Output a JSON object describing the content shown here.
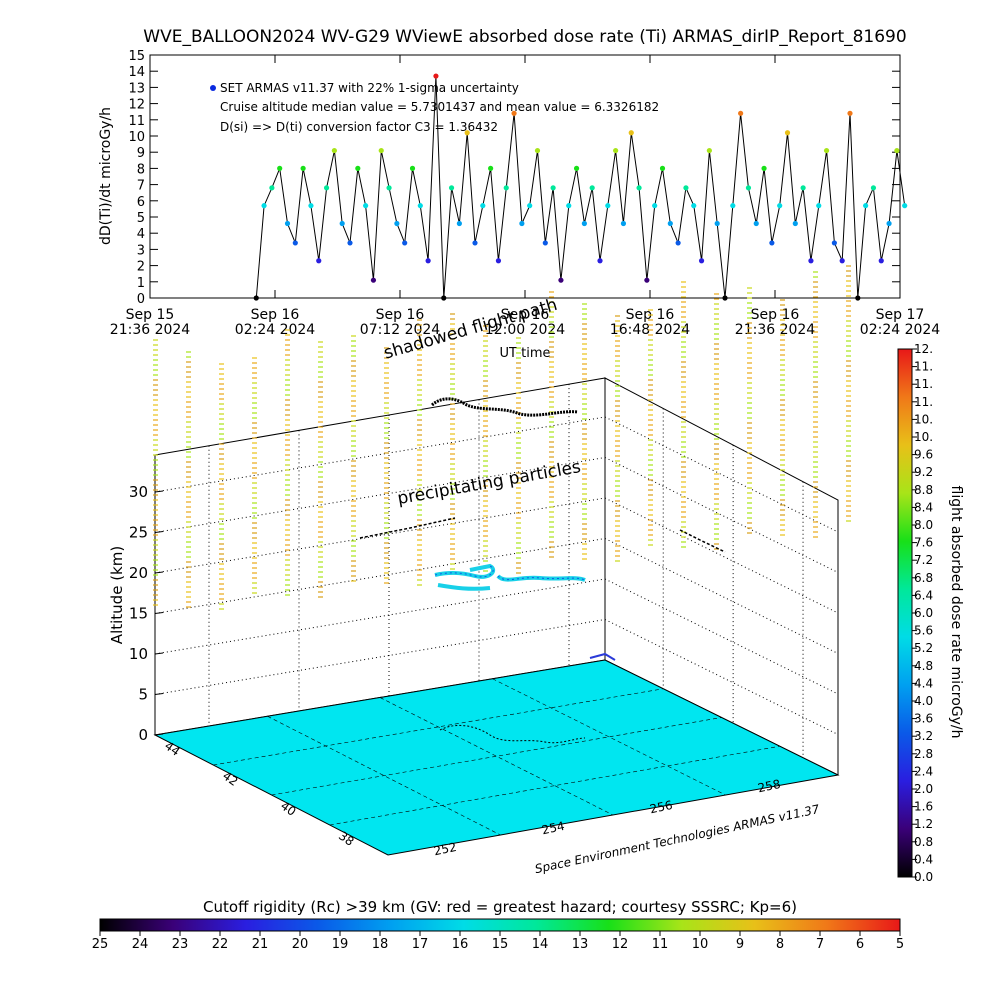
{
  "title": "WVE_BALLOON2024 WV-G29 WViewE absorbed dose rate (Ti) ARMAS_dirIP_Report_81690",
  "colors": {
    "black": "#000000",
    "surface": "#00e6f0",
    "rainbow": [
      "#000000",
      "#3a0078",
      "#2a1ee0",
      "#0a5ae8",
      "#00a0f0",
      "#00dce6",
      "#00e89a",
      "#18e018",
      "#a8e418",
      "#e8c018",
      "#f07818",
      "#e81818"
    ]
  },
  "chart_data": [
    {
      "type": "scatter",
      "title": "WVE_BALLOON2024 WV-G29 WViewE absorbed dose rate (Ti) ARMAS_dirIP_Report_81690",
      "ylabel": "dD(Ti)/dt microGy/h",
      "xlabel": "UT time",
      "ylim": [
        0,
        15
      ],
      "yticks": [
        "0",
        "1",
        "2",
        "3",
        "4",
        "5",
        "6",
        "7",
        "8",
        "9",
        "10",
        "11",
        "12",
        "13",
        "14",
        "15"
      ],
      "xticks": [
        {
          "day": "Sep 15",
          "time": "21:36 2024"
        },
        {
          "day": "Sep 16",
          "time": "02:24 2024"
        },
        {
          "day": "Sep 16",
          "time": "07:12 2024"
        },
        {
          "day": "Sep 16",
          "time": "12:00 2024"
        },
        {
          "day": "Sep 16",
          "time": "16:48 2024"
        },
        {
          "day": "Sep 16",
          "time": "21:36 2024"
        },
        {
          "day": "Sep 17",
          "time": "02:24 2024"
        }
      ],
      "annotations": [
        "SET ARMAS v11.37 with 22% 1-sigma uncertainty",
        "Cruise altitude median value = 5.7301437 and mean value = 6.3326182",
        "D(si) => D(ti) conversion factor C3 = 1.36432"
      ],
      "series": [
        {
          "name": "SET ARMAS v11.37 with 22% 1-sigma uncertainty",
          "x_hours_from_start": [
            0.0,
            0.3,
            0.6,
            0.9,
            1.2,
            1.5,
            1.8,
            2.1,
            2.4,
            2.7,
            3.0,
            3.3,
            3.6,
            3.9,
            4.2,
            4.5,
            4.8,
            5.1,
            5.4,
            5.7,
            6.0,
            6.3,
            6.6,
            6.9,
            7.2,
            7.5,
            7.8,
            8.1,
            8.4,
            8.7,
            9.0,
            9.3,
            9.6,
            9.9,
            10.2,
            10.5,
            10.8,
            11.1,
            11.4,
            11.7,
            12.0,
            12.3,
            12.6,
            12.9,
            13.2,
            13.5,
            13.8,
            14.1,
            14.4,
            14.7,
            15.0,
            15.3,
            15.6,
            15.9,
            16.2,
            16.5,
            16.8,
            17.1,
            17.4,
            17.7,
            18.0,
            18.3,
            18.6,
            18.9,
            19.2,
            19.5,
            19.8,
            20.1,
            20.4,
            20.7,
            21.0,
            21.3,
            21.6,
            21.9,
            22.2,
            22.5,
            22.8,
            23.1,
            23.4,
            23.7,
            24.0,
            24.3,
            24.6,
            24.9
          ],
          "values": [
            0,
            5.7,
            6.8,
            8,
            4.6,
            3.4,
            8,
            5.7,
            2.3,
            6.8,
            9.1,
            4.6,
            3.4,
            8,
            5.7,
            1.1,
            9.1,
            6.8,
            4.6,
            3.4,
            8,
            5.7,
            2.3,
            13.7,
            0,
            6.8,
            4.6,
            10.2,
            3.4,
            5.7,
            8,
            2.3,
            6.8,
            11.4,
            4.6,
            5.7,
            9.1,
            3.4,
            6.8,
            1.1,
            5.7,
            8,
            4.6,
            6.8,
            2.3,
            5.7,
            9.1,
            4.6,
            10.2,
            6.8,
            1.1,
            5.7,
            8,
            4.6,
            3.4,
            6.8,
            5.7,
            2.3,
            9.1,
            4.6,
            0,
            5.7,
            11.4,
            6.8,
            4.6,
            8,
            3.4,
            5.7,
            10.2,
            4.6,
            6.8,
            2.3,
            5.7,
            9.1,
            3.4,
            2.3,
            11.4,
            0,
            5.7,
            6.8,
            2.3,
            4.6,
            9.1,
            5.7
          ]
        }
      ]
    },
    {
      "type": "scatter",
      "title": "",
      "zlabel": "Altitude (km)",
      "zticks": [
        "0",
        "5",
        "10",
        "15",
        "20",
        "25",
        "30"
      ],
      "lat_ticks": [
        "44",
        "42",
        "40",
        "38"
      ],
      "lon_ticks": [
        "252",
        "254",
        "256",
        "258"
      ],
      "overlay_labels": [
        "shadowed flight path",
        "precipitating particles"
      ],
      "credit": "Space Environment Technologies ARMAS v11.37",
      "colorbar": {
        "label": "flight absorbed dose rate microGy/h",
        "ticks": [
          "0.0",
          "0.4",
          "0.8",
          "1.2",
          "1.6",
          "2.0",
          "2.4",
          "2.8",
          "3.2",
          "3.6",
          "4.0",
          "4.4",
          "4.8",
          "5.2",
          "5.6",
          "6.0",
          "6.4",
          "6.8",
          "7.2",
          "7.6",
          "8.0",
          "8.4",
          "8.8",
          "9.2",
          "9.6",
          "10.",
          "10.",
          "11.",
          "11.",
          "11.",
          "12."
        ]
      }
    },
    {
      "type": "heatmap",
      "title": "Cutoff rigidity (Rc) >39 km (GV: red = greatest hazard; courtesy SSSRC; Kp=6)",
      "ticks": [
        "25",
        "24",
        "23",
        "22",
        "21",
        "20",
        "19",
        "18",
        "17",
        "16",
        "15",
        "14",
        "13",
        "12",
        "11",
        "10",
        "9",
        "8",
        "7",
        "6",
        "5"
      ]
    }
  ]
}
